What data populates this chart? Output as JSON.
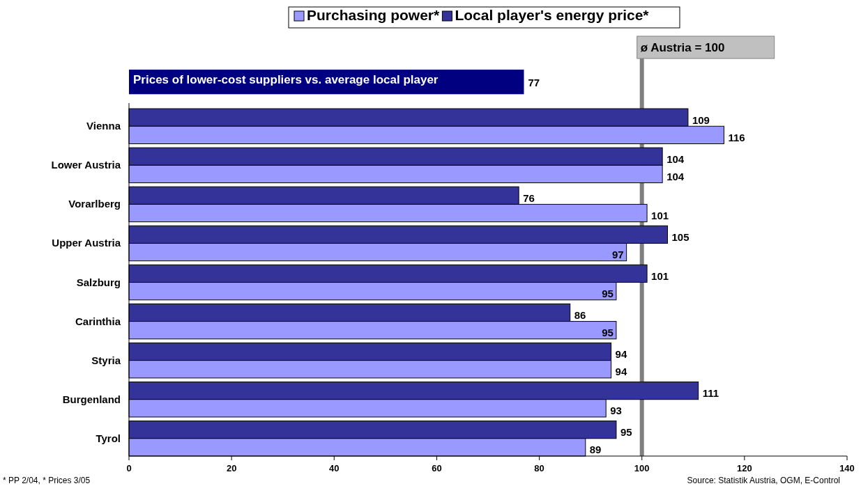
{
  "chart_data": {
    "type": "bar",
    "orientation": "horizontal",
    "categories": [
      null,
      "Vienna",
      "Lower Austria",
      "Vorarlberg",
      "Upper Austria",
      "Salzburg",
      "Carinthia",
      "Styria",
      "Burgenland",
      "Tyrol"
    ],
    "series": [
      {
        "name": "Local player's energy price*",
        "color": "#333399",
        "colors": [
          "#000080",
          "#333399",
          "#333399",
          "#333399",
          "#333399",
          "#333399",
          "#333399",
          "#333399",
          "#333399",
          "#333399"
        ],
        "values": [
          77,
          109,
          104,
          76,
          105,
          101,
          86,
          94,
          111,
          95
        ]
      },
      {
        "name": "Purchasing power*",
        "color": "#9999ff",
        "values": [
          null,
          116,
          104,
          101,
          97,
          95,
          95,
          94,
          93,
          89
        ]
      }
    ],
    "xlim": [
      0,
      140
    ],
    "xticks": [
      0,
      20,
      40,
      60,
      80,
      100,
      120,
      140
    ],
    "data_labels": true,
    "grid": false,
    "legend": "top",
    "ref_lines": [
      {
        "axis": "x",
        "value": 100,
        "label": "ø Austria = 100",
        "color": "#808080"
      }
    ],
    "annotations": [
      "Prices of lower-cost suppliers vs. average local player",
      "* PP 2/04, * Prices 3/05",
      "Source: Statistik Austria, OGM, E-Control"
    ]
  }
}
